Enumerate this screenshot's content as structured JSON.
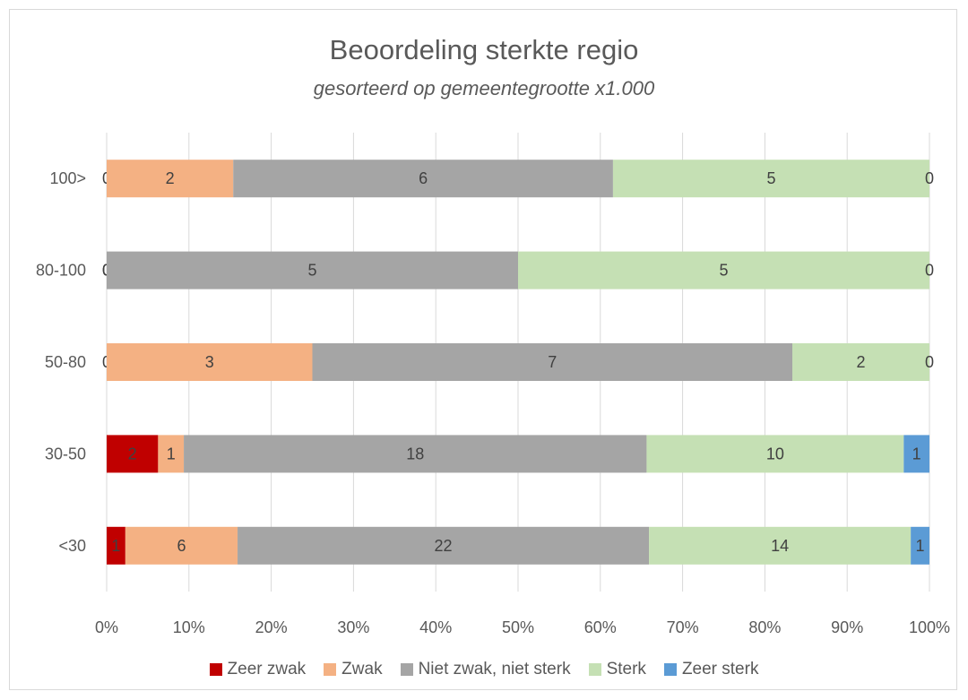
{
  "chart_data": {
    "type": "bar",
    "orientation": "horizontal",
    "stacking": "percent",
    "title": "Beoordeling sterkte regio",
    "subtitle": "gesorteerd op gemeentegrootte x1.000",
    "categories": [
      "100>",
      "80-100",
      "50-80",
      "30-50",
      "<30"
    ],
    "series": [
      {
        "name": "Zeer zwak",
        "color": "#c00000",
        "values": [
          0,
          0,
          0,
          2,
          1
        ]
      },
      {
        "name": "Zwak",
        "color": "#f4b183",
        "values": [
          2,
          0,
          3,
          1,
          6
        ]
      },
      {
        "name": "Niet zwak, niet sterk",
        "color": "#a5a5a5",
        "values": [
          6,
          5,
          7,
          18,
          22
        ]
      },
      {
        "name": "Sterk",
        "color": "#c5e0b4",
        "values": [
          5,
          5,
          2,
          10,
          14
        ]
      },
      {
        "name": "Zeer sterk",
        "color": "#5b9bd5",
        "values": [
          0,
          0,
          0,
          1,
          1
        ]
      }
    ],
    "x_ticks": [
      "0%",
      "10%",
      "20%",
      "30%",
      "40%",
      "50%",
      "60%",
      "70%",
      "80%",
      "90%",
      "100%"
    ],
    "xlim": [
      0,
      100
    ],
    "grid": true,
    "legend_position": "bottom"
  }
}
